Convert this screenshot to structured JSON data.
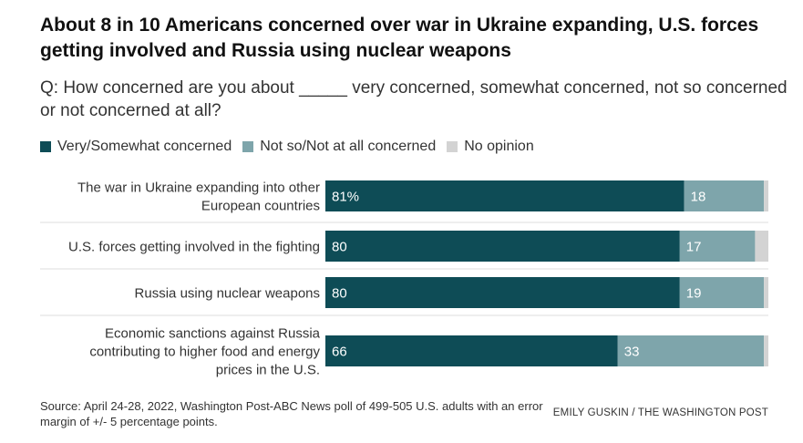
{
  "header": {
    "title": "About 8 in 10 Americans concerned over war in Ukraine expanding, U.S. forces getting involved and Russia using nuclear weapons",
    "question": "Q: How concerned are you about _____ very concerned, somewhat concerned, not so concerned or not concerned at all?"
  },
  "legend": [
    {
      "label": "Very/Somewhat concerned",
      "color": "#0e4c56"
    },
    {
      "label": "Not so/Not at all concerned",
      "color": "#7ea5ab"
    },
    {
      "label": "No opinion",
      "color": "#d3d3d3"
    }
  ],
  "chart_data": {
    "type": "bar",
    "orientation": "horizontal",
    "stacked": true,
    "categories": [
      [
        "The war in Ukraine expanding into other",
        "European countries"
      ],
      [
        "U.S. forces getting involved in the fighting"
      ],
      [
        "Russia using nuclear weapons"
      ],
      [
        "Economic sanctions against Russia",
        "contributing to higher food and energy",
        "prices in the U.S."
      ]
    ],
    "series": [
      {
        "name": "Very/Somewhat concerned",
        "values": [
          81,
          80,
          80,
          66
        ],
        "labels": [
          "81%",
          "80",
          "80",
          "66"
        ],
        "color": "#0e4c56"
      },
      {
        "name": "Not so/Not at all concerned",
        "values": [
          18,
          17,
          19,
          33
        ],
        "labels": [
          "18",
          "17",
          "19",
          "33"
        ],
        "color": "#7ea5ab"
      },
      {
        "name": "No opinion",
        "values": [
          1,
          3,
          1,
          1
        ],
        "labels": [
          "",
          "",
          "",
          ""
        ],
        "color": "#d3d3d3"
      }
    ],
    "xlim": [
      0,
      100
    ]
  },
  "footer": {
    "source": "Source: April 24-28, 2022, Washington Post-ABC News poll of 499-505 U.S. adults with an error margin of +/- 5 percentage points.",
    "credit": "EMILY GUSKIN / THE WASHINGTON POST"
  }
}
